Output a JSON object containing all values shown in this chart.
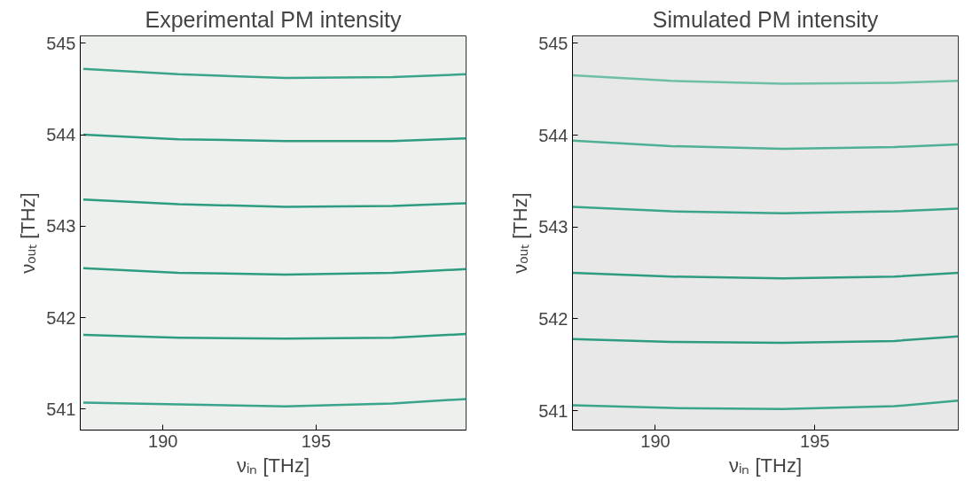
{
  "chart_data": [
    {
      "type": "line",
      "title": "Experimental PM intensity",
      "xlabel": "νᵢₙ [THz]",
      "ylabel": "νₒᵤₜ [THz]",
      "x": [
        187.4,
        190.5,
        194,
        197.5,
        199.9
      ],
      "series": [
        {
          "color": "#3aa58a",
          "values": [
            544.72,
            544.66,
            544.62,
            544.63,
            544.66
          ]
        },
        {
          "color": "#2e9c80",
          "values": [
            544.0,
            543.95,
            543.93,
            543.93,
            543.96
          ]
        },
        {
          "color": "#2e9c80",
          "values": [
            543.29,
            543.24,
            543.21,
            543.22,
            543.25
          ]
        },
        {
          "color": "#2e9c80",
          "values": [
            542.54,
            542.49,
            542.47,
            542.49,
            542.53
          ]
        },
        {
          "color": "#2e9c80",
          "values": [
            541.81,
            541.78,
            541.77,
            541.78,
            541.82
          ]
        },
        {
          "color": "#3aa58a",
          "values": [
            541.07,
            541.05,
            541.03,
            541.06,
            541.11
          ]
        }
      ],
      "xlim": [
        187.3,
        199.9
      ],
      "ylim": [
        540.77,
        545.08
      ],
      "xticks": [
        190,
        195
      ],
      "yticks": [
        541,
        542,
        543,
        544,
        545
      ],
      "grid": false
    },
    {
      "type": "line",
      "title": "Simulated PM intensity",
      "xlabel": "νᵢₙ [THz]",
      "ylabel": "νₒᵤₜ [THz]",
      "x": [
        187.4,
        190.5,
        194,
        197.5,
        199.5
      ],
      "series": [
        {
          "color": "#6fbfa8",
          "values": [
            544.65,
            544.59,
            544.56,
            544.57,
            544.59
          ]
        },
        {
          "color": "#4fb095",
          "values": [
            543.94,
            543.88,
            543.85,
            543.87,
            543.9
          ]
        },
        {
          "color": "#3aa58a",
          "values": [
            543.22,
            543.17,
            543.15,
            543.17,
            543.2
          ]
        },
        {
          "color": "#2e9c80",
          "values": [
            542.5,
            542.46,
            542.44,
            542.46,
            542.5
          ]
        },
        {
          "color": "#2e9c80",
          "values": [
            541.78,
            541.75,
            541.74,
            541.76,
            541.81
          ]
        },
        {
          "color": "#3aa58a",
          "values": [
            541.06,
            541.03,
            541.02,
            541.05,
            541.11
          ]
        }
      ],
      "xlim": [
        187.4,
        199.5
      ],
      "ylim": [
        540.79,
        545.08
      ],
      "xticks": [
        190,
        195
      ],
      "yticks": [
        541,
        542,
        543,
        544,
        545
      ],
      "grid": false
    }
  ]
}
